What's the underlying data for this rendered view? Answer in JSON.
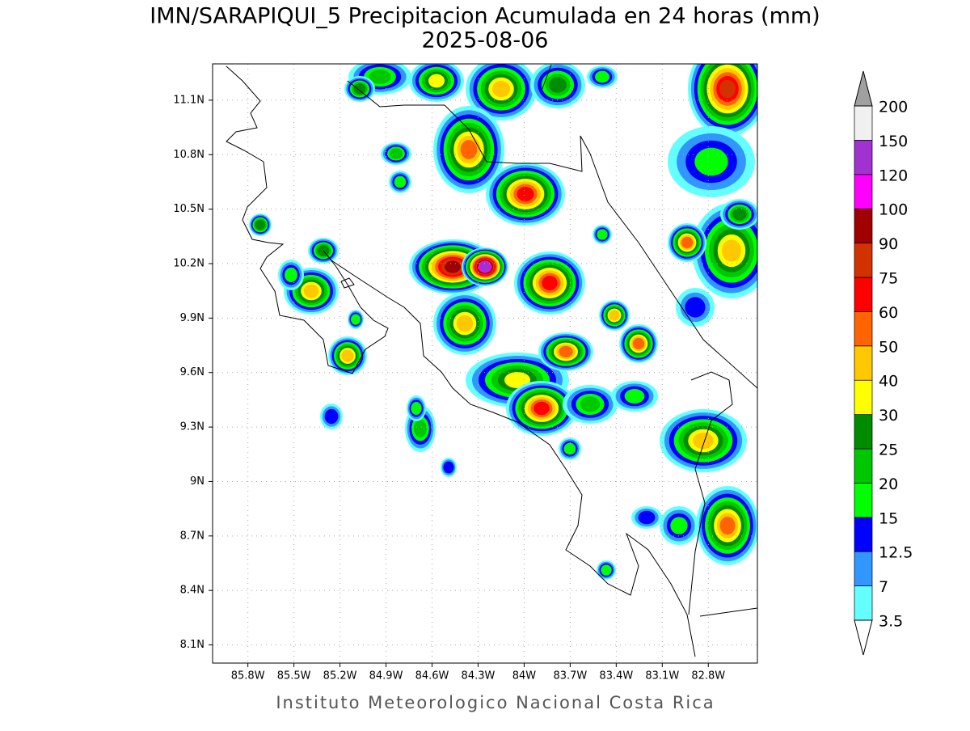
{
  "map": {
    "title": "IMN/SARAPIQUI_5 Precipitacion Acumulada en 24 horas (mm)",
    "subtitle": "2025-08-06",
    "footer": "Instituto Meteorologico Nacional Costa Rica",
    "xlim": [
      -86.03,
      -82.48
    ],
    "ylim": [
      8.0,
      11.3
    ],
    "xticks": [
      {
        "value": -85.8,
        "label": "85.8W"
      },
      {
        "value": -85.5,
        "label": "85.5W"
      },
      {
        "value": -85.2,
        "label": "85.2W"
      },
      {
        "value": -84.9,
        "label": "84.9W"
      },
      {
        "value": -84.6,
        "label": "84.6W"
      },
      {
        "value": -84.3,
        "label": "84.3W"
      },
      {
        "value": -84.0,
        "label": "84W"
      },
      {
        "value": -83.7,
        "label": "83.7W"
      },
      {
        "value": -83.4,
        "label": "83.4W"
      },
      {
        "value": -83.1,
        "label": "83.1W"
      },
      {
        "value": -82.8,
        "label": "82.8W"
      }
    ],
    "yticks": [
      {
        "value": 11.1,
        "label": "11.1N"
      },
      {
        "value": 10.8,
        "label": "10.8N"
      },
      {
        "value": 10.5,
        "label": "10.5N"
      },
      {
        "value": 10.2,
        "label": "10.2N"
      },
      {
        "value": 9.9,
        "label": "9.9N"
      },
      {
        "value": 9.6,
        "label": "9.6N"
      },
      {
        "value": 9.3,
        "label": "9.3N"
      },
      {
        "value": 9.0,
        "label": "9N"
      },
      {
        "value": 8.7,
        "label": "8.7N"
      },
      {
        "value": 8.4,
        "label": "8.4N"
      },
      {
        "value": 8.1,
        "label": "8.1N"
      }
    ],
    "grid": true,
    "colorbar": {
      "levels": [
        3.5,
        7,
        12.5,
        15,
        20,
        25,
        30,
        40,
        50,
        60,
        75,
        90,
        100,
        120,
        150,
        200
      ],
      "colors": [
        "#64ffff",
        "#3296ff",
        "#0000ff",
        "#00ff00",
        "#00c800",
        "#008c00",
        "#ffff00",
        "#ffc800",
        "#ff6400",
        "#ff0000",
        "#d23200",
        "#a00000",
        "#ff00ff",
        "#a032d2",
        "#f0f0f0"
      ],
      "under_color": "#ffffff",
      "over_color": "#a0a0a0"
    }
  }
}
